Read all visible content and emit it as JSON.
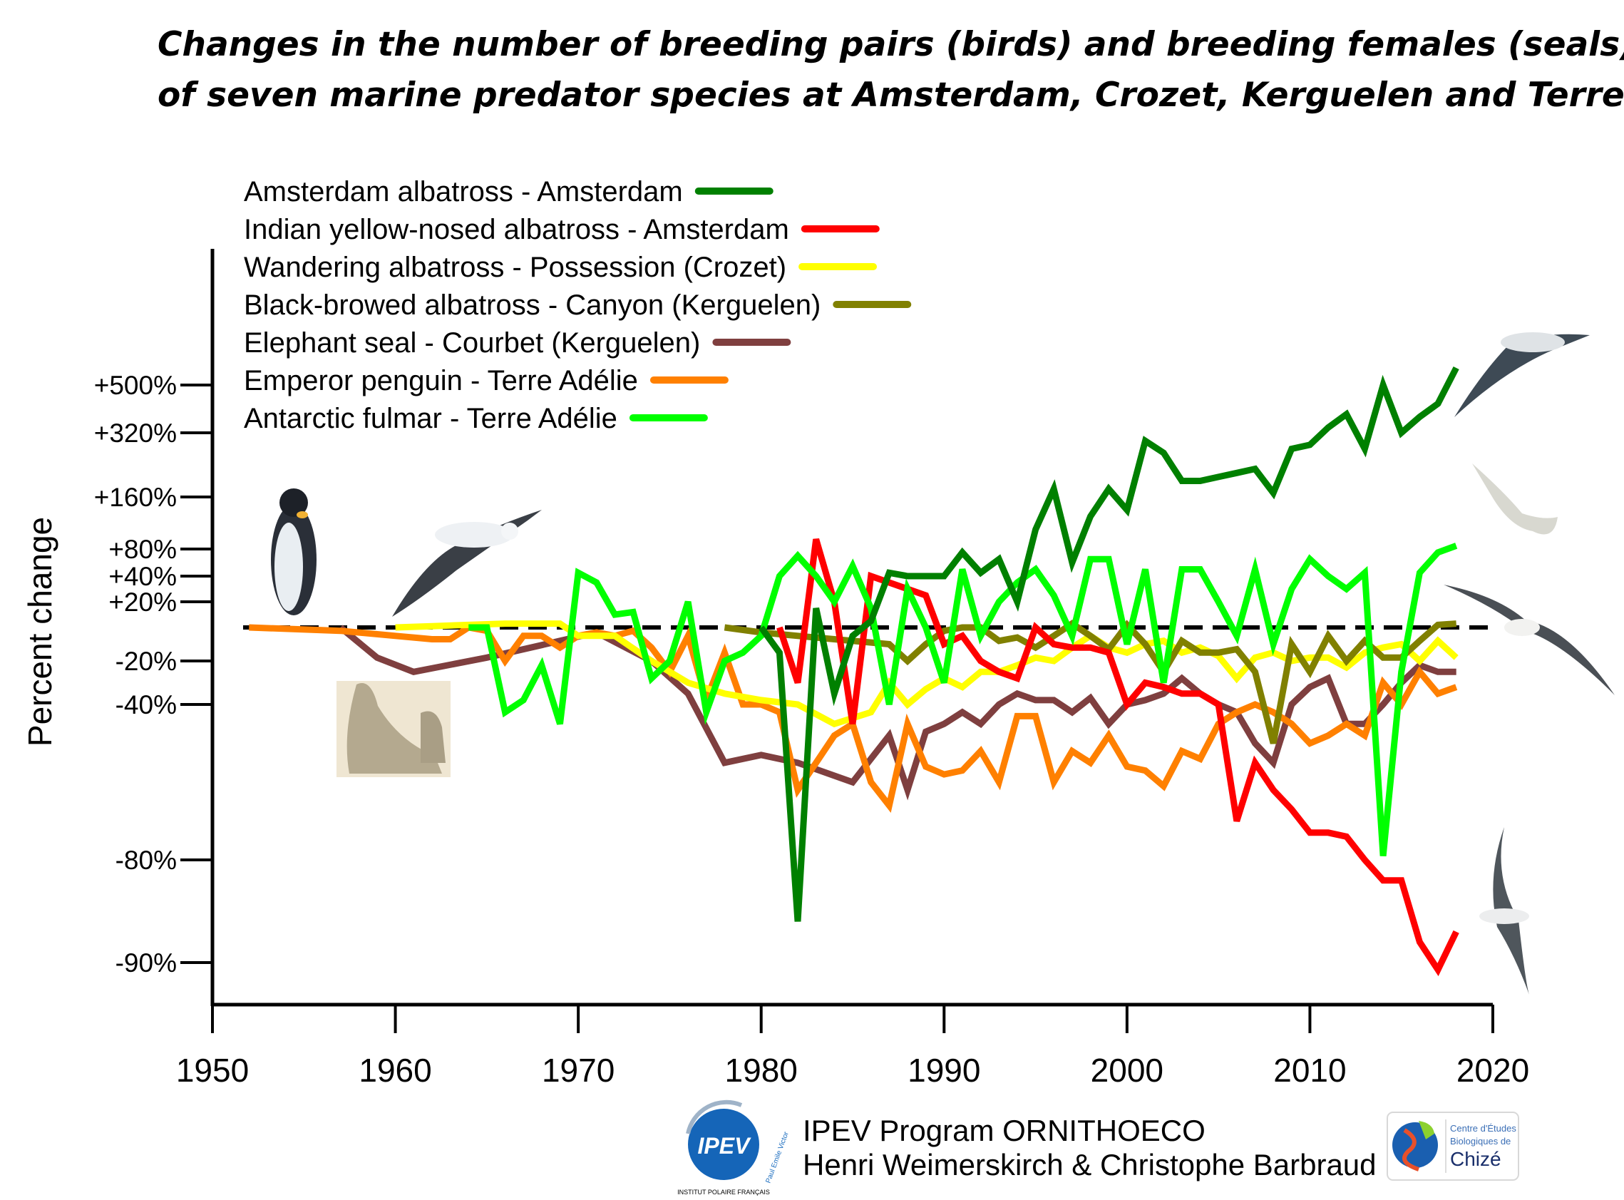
{
  "chart_data": {
    "type": "line",
    "title": [
      "Changes in the number of breeding pairs (birds) and breeding females (seals)",
      "of seven marine predator species at Amsterdam, Crozet, Kerguelen and Terre Adélie"
    ],
    "ylabel": "Percent change",
    "xlabel": "",
    "xlim": [
      1950,
      2020
    ],
    "x_ticks": [
      "1950",
      "1960",
      "1970",
      "1980",
      "1990",
      "2000",
      "2010",
      "2020"
    ],
    "y_ticks": [
      {
        "label": "+500%",
        "value": 500
      },
      {
        "label": "+320%",
        "value": 320
      },
      {
        "label": "+160%",
        "value": 160
      },
      {
        "label": "+80%",
        "value": 80
      },
      {
        "label": "+40%",
        "value": 40
      },
      {
        "label": "+20%",
        "value": 20
      },
      {
        "label": "-20%",
        "value": -20
      },
      {
        "label": "-40%",
        "value": -40
      },
      {
        "label": "-80%",
        "value": -80
      },
      {
        "label": "-90%",
        "value": -90
      }
    ],
    "y_scale": "log ratio (non-linear)",
    "reference_line": {
      "value": 0,
      "style": "dashed",
      "color": "#000000"
    },
    "legend_placement": "top-left",
    "series": [
      {
        "name": "Amsterdam albatross - Amsterdam",
        "color": "#008000",
        "x": [
          1980,
          1981,
          1982,
          1983,
          1984,
          1985,
          1986,
          1987,
          1988,
          1989,
          1990,
          1991,
          1992,
          1993,
          1994,
          1995,
          1996,
          1997,
          1998,
          1999,
          2000,
          2001,
          2002,
          2003,
          2004,
          2005,
          2006,
          2007,
          2008,
          2009,
          2010,
          2011,
          2012,
          2013,
          2014,
          2015,
          2016,
          2017,
          2018
        ],
        "y": [
          0,
          -15,
          -86,
          15,
          -35,
          -5,
          5,
          45,
          40,
          40,
          40,
          75,
          45,
          65,
          20,
          110,
          180,
          60,
          130,
          180,
          140,
          300,
          270,
          200,
          200,
          210,
          220,
          230,
          170,
          280,
          290,
          340,
          390,
          280,
          500,
          320,
          380,
          430,
          560
        ]
      },
      {
        "name": "Indian yellow-nosed albatross - Amsterdam",
        "color": "#ff0000",
        "x": [
          1981,
          1982,
          1983,
          1984,
          1985,
          1986,
          1987,
          1988,
          1989,
          1990,
          1991,
          1992,
          1993,
          1994,
          1995,
          1996,
          1997,
          1998,
          1999,
          2000,
          2001,
          2002,
          2003,
          2004,
          2005,
          2006,
          2007,
          2008,
          2009,
          2010,
          2011,
          2012,
          2013,
          2014,
          2015,
          2016,
          2017,
          2018
        ],
        "y": [
          0,
          -30,
          95,
          20,
          -45,
          40,
          35,
          30,
          25,
          -10,
          -5,
          -20,
          -25,
          -28,
          0,
          -10,
          -12,
          -12,
          -15,
          -40,
          -30,
          -32,
          -35,
          -35,
          -40,
          -70,
          -55,
          -62,
          -67,
          -73,
          -73,
          -74,
          -80,
          -82,
          -82,
          -88,
          -91,
          -87
        ]
      },
      {
        "name": "Wandering albatross - Possession (Crozet)",
        "color": "#ffff00",
        "x": [
          1960,
          1962,
          1964,
          1966,
          1968,
          1969,
          1970,
          1972,
          1974,
          1976,
          1978,
          1980,
          1982,
          1984,
          1986,
          1987,
          1988,
          1989,
          1990,
          1991,
          1992,
          1993,
          1994,
          1995,
          1996,
          1997,
          1998,
          1999,
          2000,
          2001,
          2002,
          2003,
          2004,
          2005,
          2006,
          2007,
          2008,
          2009,
          2010,
          2011,
          2012,
          2013,
          2014,
          2015,
          2016,
          2017,
          2018
        ],
        "y": [
          0,
          1,
          2,
          3,
          3,
          3,
          -5,
          -5,
          -20,
          -30,
          -35,
          -38,
          -40,
          -45,
          -42,
          -30,
          -40,
          -33,
          -28,
          -32,
          -25,
          -25,
          -22,
          -18,
          -20,
          -12,
          -5,
          -12,
          -15,
          -10,
          -8,
          -15,
          -12,
          -17,
          -28,
          -18,
          -15,
          -20,
          -18,
          -18,
          -23,
          -15,
          -12,
          -10,
          -20,
          -8,
          -18
        ]
      },
      {
        "name": "Black-browed albatross - Canyon (Kerguelen)",
        "color": "#808000",
        "x": [
          1978,
          1980,
          1982,
          1984,
          1986,
          1987,
          1988,
          1989,
          1990,
          1991,
          1992,
          1993,
          1994,
          1995,
          1996,
          1997,
          1998,
          1999,
          2000,
          2001,
          2002,
          2003,
          2004,
          2005,
          2006,
          2007,
          2008,
          2009,
          2010,
          2011,
          2012,
          2013,
          2014,
          2015,
          2016,
          2017,
          2018
        ],
        "y": [
          0,
          -3,
          -5,
          -7,
          -9,
          -10,
          -20,
          -10,
          -2,
          0,
          0,
          -8,
          -6,
          -12,
          -5,
          3,
          -5,
          -13,
          2,
          -10,
          -25,
          -8,
          -15,
          -15,
          -13,
          -25,
          -50,
          -10,
          -25,
          -5,
          -20,
          -8,
          -18,
          -18,
          -8,
          2,
          3
        ]
      },
      {
        "name": "Elephant seal - Courbet (Kerguelen)",
        "color": "#7f3f3f",
        "x": [
          1957,
          1959,
          1961,
          1965,
          1969,
          1971,
          1974,
          1976,
          1978,
          1980,
          1982,
          1985,
          1987,
          1988,
          1989,
          1990,
          1991,
          1992,
          1993,
          1994,
          1995,
          1996,
          1997,
          1998,
          1999,
          2000,
          2001,
          2002,
          2003,
          2004,
          2005,
          2006,
          2007,
          2008,
          2009,
          2010,
          2011,
          2012,
          2013,
          2014,
          2015,
          2016,
          2017,
          2018
        ],
        "y": [
          0,
          -18,
          -25,
          -18,
          -8,
          -3,
          -20,
          -35,
          -55,
          -53,
          -55,
          -60,
          -48,
          -62,
          -47,
          -45,
          -42,
          -45,
          -40,
          -35,
          -38,
          -38,
          -42,
          -37,
          -45,
          -40,
          -38,
          -35,
          -28,
          -35,
          -40,
          -42,
          -50,
          -55,
          -40,
          -32,
          -28,
          -45,
          -45,
          -40,
          -30,
          -22,
          -25,
          -25
        ]
      },
      {
        "name": "Emperor penguin - Terre Adélie",
        "color": "#ff8000",
        "x": [
          1952,
          1957,
          1960,
          1962,
          1963,
          1964,
          1965,
          1966,
          1967,
          1968,
          1969,
          1970,
          1971,
          1972,
          1973,
          1974,
          1975,
          1976,
          1977,
          1978,
          1979,
          1980,
          1981,
          1982,
          1983,
          1984,
          1985,
          1986,
          1987,
          1988,
          1989,
          1990,
          1991,
          1992,
          1993,
          1994,
          1995,
          1996,
          1997,
          1998,
          1999,
          2000,
          2001,
          2002,
          2003,
          2004,
          2005,
          2006,
          2007,
          2008,
          2009,
          2010,
          2011,
          2012,
          2013,
          2014,
          2015,
          2016,
          2017,
          2018
        ],
        "y": [
          0,
          -2,
          -5,
          -7,
          -7,
          0,
          -2,
          -20,
          -5,
          -5,
          -12,
          -5,
          -3,
          -5,
          -2,
          -12,
          -25,
          -5,
          -38,
          -15,
          -40,
          -40,
          -42,
          -62,
          -55,
          -48,
          -45,
          -60,
          -66,
          -45,
          -56,
          -58,
          -57,
          -52,
          -60,
          -43,
          -43,
          -60,
          -52,
          -55,
          -48,
          -56,
          -57,
          -61,
          -52,
          -54,
          -45,
          -42,
          -40,
          -42,
          -45,
          -50,
          -48,
          -45,
          -48,
          -30,
          -40,
          -25,
          -35,
          -32
        ]
      },
      {
        "name": "Antarctic fulmar - Terre Adélie",
        "color": "#00ff00",
        "x": [
          1964,
          1965,
          1966,
          1967,
          1968,
          1969,
          1970,
          1971,
          1972,
          1973,
          1974,
          1975,
          1976,
          1977,
          1978,
          1979,
          1980,
          1981,
          1982,
          1983,
          1984,
          1985,
          1986,
          1987,
          1988,
          1989,
          1990,
          1991,
          1992,
          1993,
          1994,
          1995,
          1996,
          1997,
          1998,
          1999,
          2000,
          2001,
          2002,
          2003,
          2004,
          2005,
          2006,
          2007,
          2008,
          2009,
          2010,
          2011,
          2012,
          2013,
          2014,
          2015,
          2016,
          2017,
          2018
        ],
        "y": [
          0,
          0,
          -42,
          -38,
          -22,
          -45,
          45,
          35,
          10,
          12,
          -28,
          -20,
          20,
          -42,
          -20,
          -15,
          -5,
          40,
          70,
          40,
          20,
          55,
          15,
          -40,
          30,
          0,
          -30,
          50,
          -5,
          20,
          35,
          50,
          25,
          -5,
          65,
          65,
          -10,
          50,
          -30,
          50,
          50,
          20,
          -5,
          50,
          -10,
          30,
          65,
          40,
          30,
          45,
          -79,
          -25,
          45,
          75,
          85
        ]
      }
    ]
  },
  "footer": {
    "program": "IPEV Program ORNITHOECO",
    "authors": "Henri Weimerskirch & Christophe Barbraud",
    "ipev_logo": {
      "text": "IPEV",
      "ring": "INSTITUT POLAIRE FRANÇAIS",
      "sub": "Paul Emile Victor"
    },
    "chize_logo": {
      "line1": "Centre d'Études",
      "line2": "Biologiques de",
      "line3": "Chizé"
    }
  }
}
